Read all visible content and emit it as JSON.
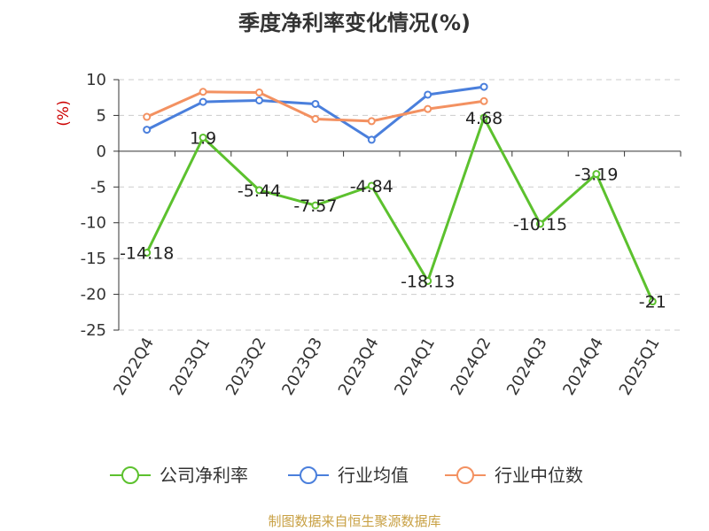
{
  "chart_data": {
    "type": "line",
    "title": "季度净利率变化情况(%)",
    "ylabel": "(%)",
    "ylim": [
      -25,
      10
    ],
    "yticks": [
      10,
      5,
      0,
      -5,
      -10,
      -15,
      -20,
      -25
    ],
    "grid": true,
    "legend_position": "bottom",
    "categories": [
      "2022Q4",
      "2023Q1",
      "2023Q2",
      "2023Q3",
      "2023Q4",
      "2024Q1",
      "2024Q2",
      "2024Q3",
      "2024Q4",
      "2025Q1"
    ],
    "series": [
      {
        "name": "公司净利率",
        "color": "#5cc12e",
        "values": [
          -14.18,
          1.9,
          -5.44,
          -7.57,
          -4.84,
          -18.13,
          4.68,
          -10.15,
          -3.19,
          -21
        ],
        "labels": [
          "-14.18",
          "1.9",
          "-5.44",
          "-7.57",
          "-4.84",
          "-18.13",
          "4.68",
          "-10.15",
          "-3.19",
          "-21"
        ]
      },
      {
        "name": "行业均值",
        "color": "#4a7fdc",
        "values": [
          3.0,
          6.9,
          7.1,
          6.6,
          1.6,
          7.9,
          9.0,
          null,
          null,
          null
        ]
      },
      {
        "name": "行业中位数",
        "color": "#f39161",
        "values": [
          4.8,
          8.3,
          8.2,
          4.5,
          4.2,
          5.9,
          7.0,
          null,
          null,
          null
        ]
      }
    ]
  },
  "source_note": "制图数据来自恒生聚源数据库",
  "colors": {
    "title": "#333333",
    "unit_label": "#cc0000",
    "source_note": "#c8a043",
    "grid": "#cccccc",
    "axis": "#333333"
  }
}
